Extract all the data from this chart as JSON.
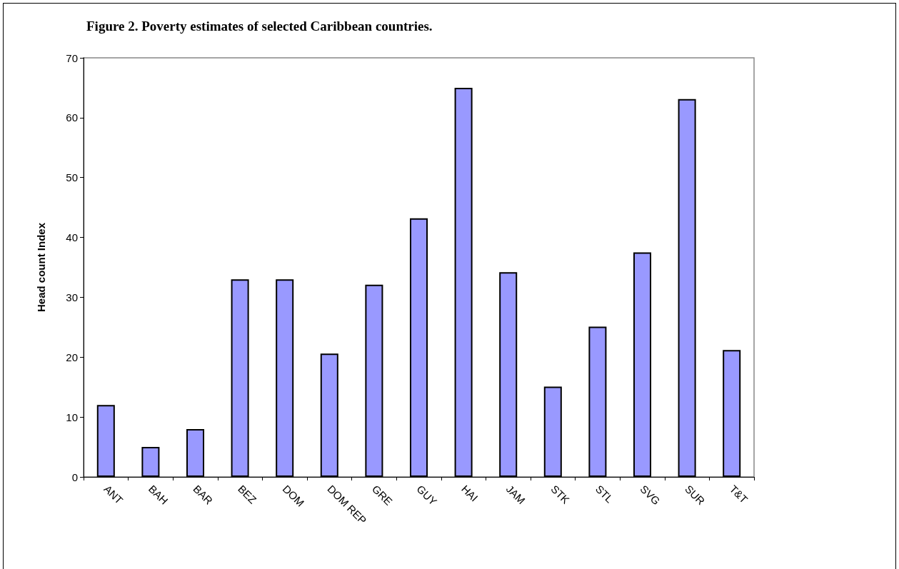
{
  "chart_data": {
    "type": "bar",
    "title": "Figure 2. Poverty estimates of selected Caribbean countries.",
    "ylabel": "Head count Index",
    "categories": [
      "ANT",
      "BAH",
      "BAR",
      "BEZ",
      "DOM",
      "DOM REP",
      "GRE",
      "GUY",
      "HAI",
      "JAM",
      "STK",
      "STL",
      "SVG",
      "SUR",
      "T&T"
    ],
    "values": [
      12,
      5,
      8,
      33,
      33,
      20.6,
      32.1,
      43.2,
      65,
      34.2,
      15.1,
      25.1,
      37.5,
      63.1,
      21.2
    ],
    "color": "#9999ff",
    "ylim": [
      0,
      70
    ],
    "yticks": [
      0,
      10,
      20,
      30,
      40,
      50,
      60,
      70
    ],
    "grid": false
  }
}
